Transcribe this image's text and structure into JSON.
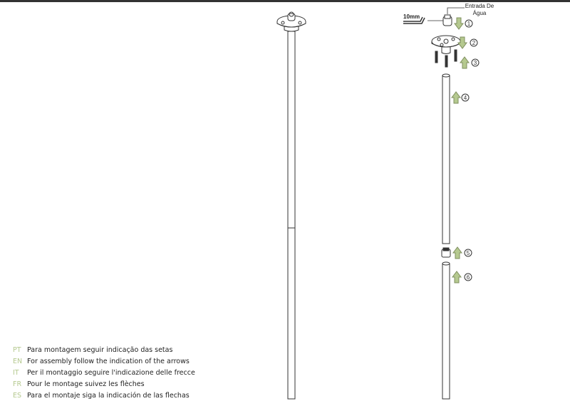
{
  "labels": {
    "water_inlet": "Entrada De Água",
    "key_size": "10mm"
  },
  "steps": [
    "1",
    "2",
    "3",
    "4",
    "5",
    "6"
  ],
  "step_arrow_directions": [
    "down",
    "down",
    "up",
    "up",
    "up",
    "up"
  ],
  "arrow_color": "#b5c98f",
  "instructions": [
    {
      "lang": "PT",
      "text": "Para montagem seguir indicação das setas"
    },
    {
      "lang": "EN",
      "text": "For assembly follow the indication of the arrows"
    },
    {
      "lang": "IT",
      "text": "Per il montaggio seguire l'indicazione delle frecce"
    },
    {
      "lang": "FR",
      "text": "Pour le montage suivez les flèches"
    },
    {
      "lang": "ES",
      "text": "Para el montaje siga la indicación de las flechas"
    }
  ]
}
